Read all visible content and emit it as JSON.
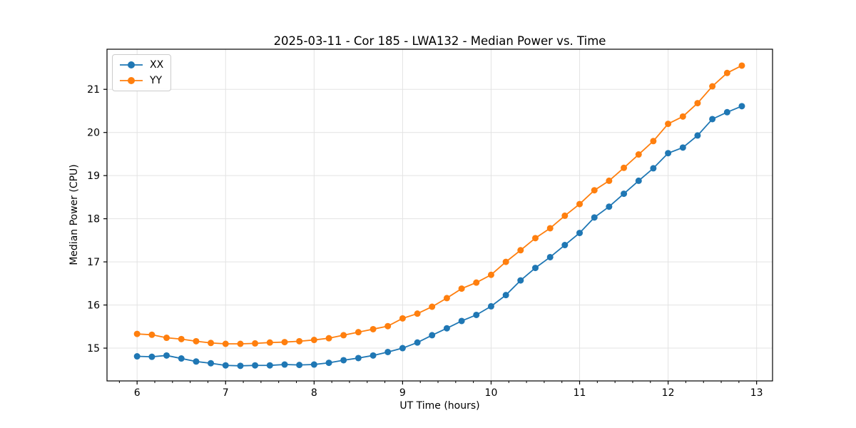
{
  "chart_data": {
    "type": "line",
    "title": "2025-03-11 - Cor 185 - LWA132 - Median Power vs. Time",
    "xlabel": "UT Time (hours)",
    "ylabel": "Median Power (CPU)",
    "xlim": [
      5.66,
      13.18
    ],
    "ylim": [
      14.24,
      21.93
    ],
    "x_ticks": [
      6,
      7,
      8,
      9,
      10,
      11,
      12,
      13
    ],
    "y_ticks": [
      15,
      16,
      17,
      18,
      19,
      20,
      21
    ],
    "x_minor_tick_step": 0.2,
    "grid": true,
    "legend_position": "upper-left",
    "marker": "circle",
    "x": [
      6.0,
      6.167,
      6.333,
      6.5,
      6.667,
      6.833,
      7.0,
      7.167,
      7.333,
      7.5,
      7.667,
      7.833,
      8.0,
      8.167,
      8.333,
      8.5,
      8.667,
      8.833,
      9.0,
      9.167,
      9.333,
      9.5,
      9.667,
      9.833,
      10.0,
      10.167,
      10.333,
      10.5,
      10.667,
      10.833,
      11.0,
      11.167,
      11.333,
      11.5,
      11.667,
      11.833,
      12.0,
      12.167,
      12.333,
      12.5,
      12.667,
      12.833
    ],
    "series": [
      {
        "name": "XX",
        "color": "#1f77b4",
        "values": [
          14.81,
          14.8,
          14.83,
          14.76,
          14.69,
          14.65,
          14.6,
          14.59,
          14.6,
          14.6,
          14.62,
          14.61,
          14.62,
          14.66,
          14.72,
          14.77,
          14.83,
          14.91,
          15.0,
          15.13,
          15.3,
          15.46,
          15.63,
          15.77,
          15.97,
          16.23,
          16.57,
          16.86,
          17.11,
          17.39,
          17.67,
          18.03,
          18.28,
          18.58,
          18.88,
          19.17,
          19.52,
          19.65,
          19.93,
          20.31,
          20.47,
          20.61
        ]
      },
      {
        "name": "YY",
        "color": "#ff7f0e",
        "values": [
          15.33,
          15.31,
          15.24,
          15.21,
          15.16,
          15.12,
          15.1,
          15.1,
          15.11,
          15.13,
          15.14,
          15.16,
          15.19,
          15.23,
          15.3,
          15.37,
          15.44,
          15.51,
          15.69,
          15.8,
          15.96,
          16.16,
          16.38,
          16.52,
          16.7,
          17.0,
          17.27,
          17.55,
          17.78,
          18.07,
          18.34,
          18.66,
          18.88,
          19.18,
          19.49,
          19.8,
          20.2,
          20.37,
          20.68,
          21.07,
          21.38,
          21.55
        ]
      }
    ],
    "colors": {
      "grid": "#e3e3e3",
      "spine": "#000000",
      "text": "#000000"
    }
  }
}
